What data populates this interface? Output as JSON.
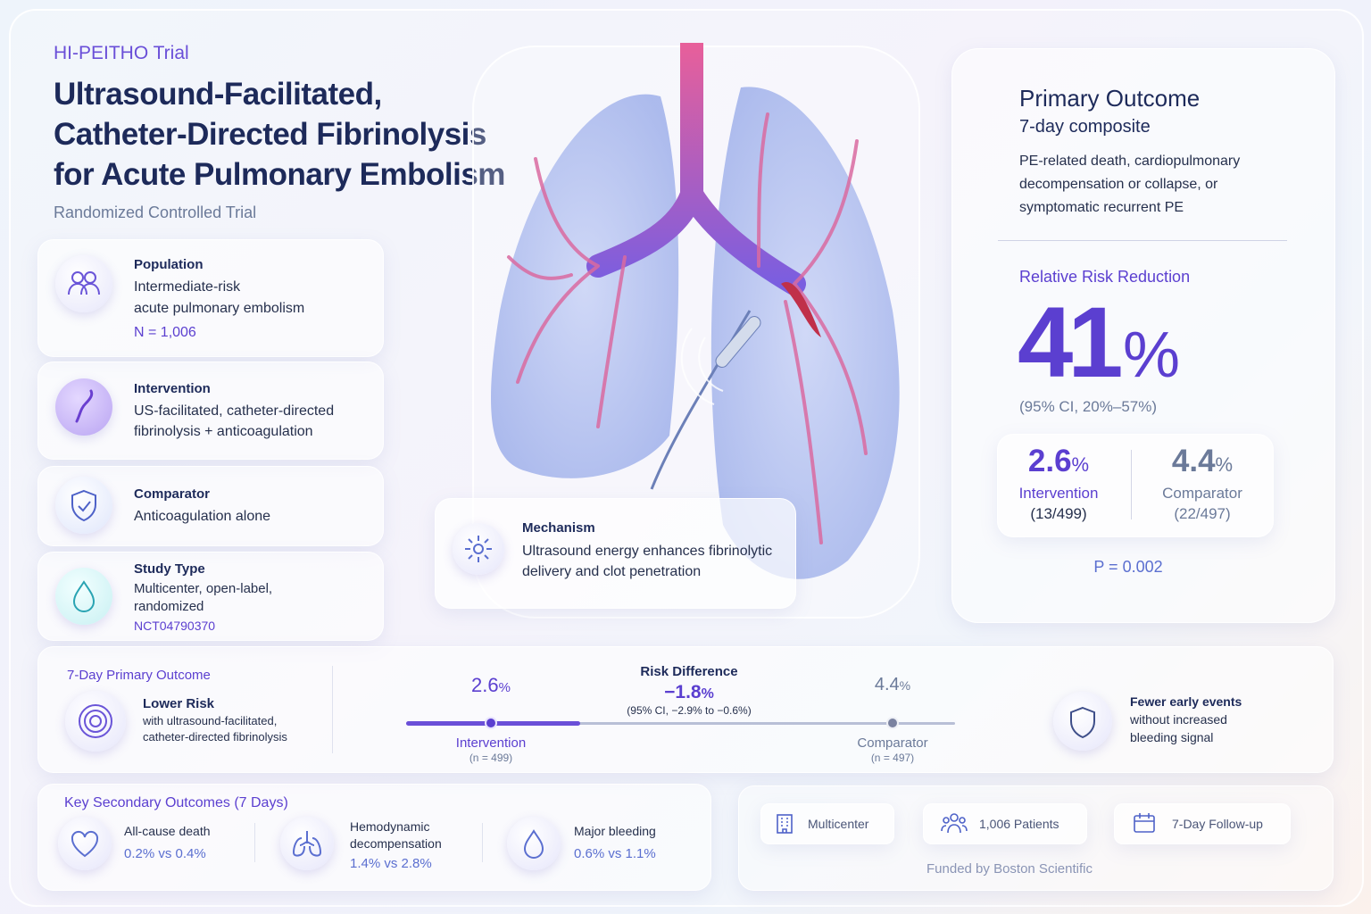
{
  "header": {
    "eyebrow": "HI-PEITHO Trial",
    "title_lines": [
      "Ultrasound-Facilitated,",
      "Catheter-Directed Fibrinolysis",
      "for Acute Pulmonary Embolism"
    ],
    "subtitle": "Randomized Controlled Trial"
  },
  "pico": [
    {
      "label": "Population",
      "lines": [
        "Intermediate-risk",
        "acute pulmonary embolism"
      ],
      "note": "N = 1,006"
    },
    {
      "label": "Intervention",
      "lines": [
        "US-facilitated, catheter-directed",
        "fibrinolysis + anticoagulation"
      ]
    },
    {
      "label": "Comparator",
      "lines": [
        "Anticoagulation alone"
      ]
    },
    {
      "label": "Study Type",
      "lines": [
        "Multicenter, open-label,",
        "randomized"
      ],
      "note": "NCT04790370"
    }
  ],
  "mechanism": {
    "label": "Mechanism",
    "lines": [
      "Ultrasound energy enhances fibrinolytic",
      "delivery and clot penetration"
    ]
  },
  "primary": {
    "title": "Primary Outcome",
    "subtitle": "7-day composite",
    "description": [
      "PE-related death, cardiopulmonary",
      "decompensation or collapse, or",
      "symptomatic recurrent PE"
    ],
    "rrr_label": "Relative Risk Reduction",
    "rrr_value": "41",
    "rrr_unit": "%",
    "rrr_ci": "(95% CI, 20%–57%)",
    "arms": [
      {
        "value": "2.6",
        "unit": "%",
        "label": "Intervention",
        "count": "(13/499)"
      },
      {
        "value": "4.4",
        "unit": "%",
        "label": "Comparator",
        "count": "(22/497)"
      }
    ],
    "p_value": "P = 0.002"
  },
  "summary": {
    "label": "7-Day Primary Outcome",
    "heading": "Lower Risk",
    "lines": [
      "with ultrasound-facilitated,",
      "catheter-directed fibrinolysis"
    ],
    "left": {
      "value": "2.6",
      "unit": "%",
      "label": "Intervention",
      "n": "(n = 499)"
    },
    "right": {
      "value": "4.4",
      "unit": "%",
      "label": "Comparator",
      "n": "(n = 497)"
    },
    "risk_difference": {
      "label": "Risk Difference",
      "value": "−1.8",
      "unit": "%",
      "ci": "(95% CI, −2.9% to −0.6%)"
    },
    "note_lines": [
      "Fewer early events",
      "without increased",
      "bleeding signal"
    ]
  },
  "secondary": {
    "title": "Key Secondary Outcomes (7 Days)",
    "items": [
      {
        "label_lines": [
          "All-cause death"
        ],
        "value": "0.2% vs 0.4%"
      },
      {
        "label_lines": [
          "Hemodynamic",
          "decompensation"
        ],
        "value": "1.4% vs 2.8%"
      },
      {
        "label_lines": [
          "Major bleeding"
        ],
        "value": "0.6% vs 1.1%"
      }
    ]
  },
  "footer": {
    "badges": [
      "Multicenter",
      "1,006 Patients",
      "7-Day Follow-up"
    ],
    "funding": "Funded by Boston Scientific"
  }
}
